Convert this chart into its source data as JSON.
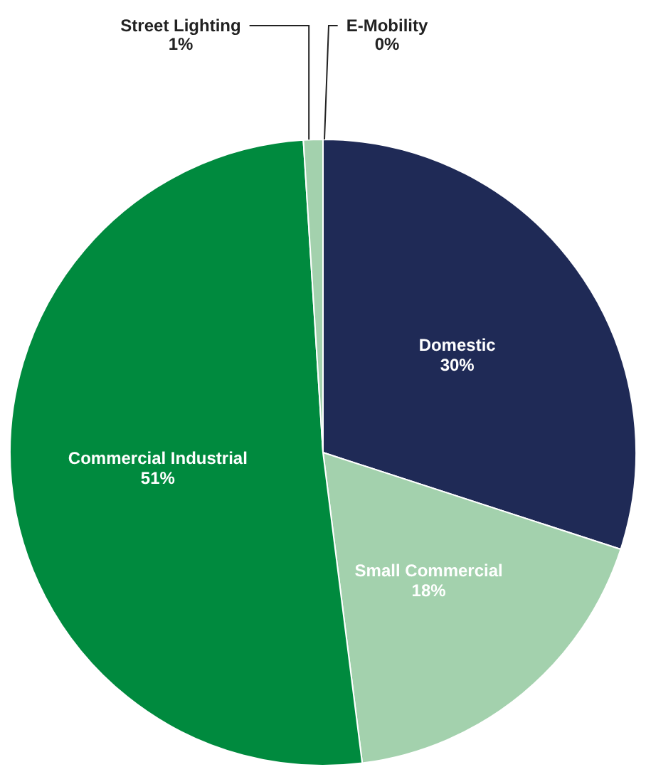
{
  "chart_data": {
    "type": "pie",
    "categories": [
      "Domestic",
      "Small Commercial",
      "Commercial Industrial",
      "Street Lighting",
      "E-Mobility"
    ],
    "values": [
      30,
      18,
      51,
      1,
      0
    ],
    "value_labels": [
      "30%",
      "18%",
      "51%",
      "1%",
      "0%"
    ],
    "colors": [
      "#1f2a56",
      "#a3d1ad",
      "#008a3e",
      "#a3d1ad",
      "#1f2a56"
    ],
    "legend": false
  }
}
